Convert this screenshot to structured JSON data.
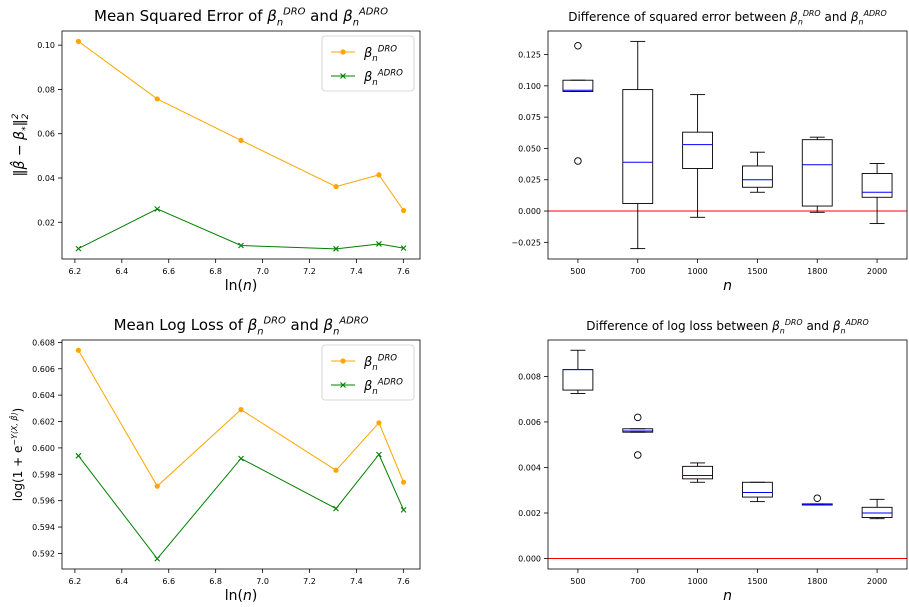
{
  "colors": {
    "dro": "#FFA500",
    "adro": "#008000",
    "box": "#000000",
    "median": "#0000FF",
    "zero_line": "#FF0000"
  },
  "chart_data": [
    {
      "id": "mse-line",
      "type": "line",
      "title_parts": [
        {
          "t": "Mean Squared Error of "
        },
        {
          "t": "β"
        },
        {
          "t": "n",
          "sub": 1
        },
        {
          "t": "DRO",
          "sup": 1
        },
        {
          "t": " and "
        },
        {
          "t": "β"
        },
        {
          "t": "n",
          "sub": 1
        },
        {
          "t": "ADRO",
          "sup": 1
        }
      ],
      "xlabel_parts": [
        {
          "t": "ln("
        },
        {
          "t": "n",
          "it": 1
        },
        {
          "t": ")"
        }
      ],
      "ylabel_parts": [
        {
          "t": "‖"
        },
        {
          "t": "β̂",
          "it": 1
        },
        {
          "t": " − "
        },
        {
          "t": "β",
          "it": 1
        },
        {
          "t": "*",
          "sub": 1
        },
        {
          "t": "‖"
        },
        {
          "t": "2",
          "sup": 1
        },
        {
          "t": "2",
          "sub": 1,
          "shift": 1
        }
      ],
      "x": [
        6.215,
        6.551,
        6.908,
        7.313,
        7.496,
        7.601
      ],
      "series": [
        {
          "name_parts": [
            {
              "t": "β"
            },
            {
              "t": "n",
              "sub": 1
            },
            {
              "t": "DRO",
              "sup": 1
            }
          ],
          "color_key": "dro",
          "marker": "circle",
          "values": [
            0.1017,
            0.0757,
            0.057,
            0.0361,
            0.0414,
            0.0253
          ]
        },
        {
          "name_parts": [
            {
              "t": "β"
            },
            {
              "t": "n",
              "sub": 1
            },
            {
              "t": "ADRO",
              "sup": 1
            }
          ],
          "color_key": "adro",
          "marker": "x",
          "values": [
            0.0081,
            0.026,
            0.0095,
            0.008,
            0.0102,
            0.0083
          ]
        }
      ],
      "xlim": [
        6.145,
        7.671
      ],
      "ylim": [
        0.0034,
        0.1064
      ],
      "xticks": [
        6.2,
        6.4,
        6.6,
        6.8,
        7.0,
        7.2,
        7.4,
        7.6
      ],
      "xtick_labels": [
        "6.2",
        "6.4",
        "6.6",
        "6.8",
        "7.0",
        "7.2",
        "7.4",
        "7.6"
      ],
      "yticks": [
        0.02,
        0.04,
        0.06,
        0.08,
        0.1
      ],
      "ytick_labels": [
        "0.02",
        "0.04",
        "0.06",
        "0.08",
        "0.10"
      ],
      "legend": "top-right",
      "grid": false
    },
    {
      "id": "mse-box",
      "type": "box",
      "title_parts": [
        {
          "t": "Difference of squared error between "
        },
        {
          "t": "β"
        },
        {
          "t": "n",
          "sub": 1
        },
        {
          "t": "DRO",
          "sup": 1
        },
        {
          "t": " and "
        },
        {
          "t": "β"
        },
        {
          "t": "n",
          "sub": 1
        },
        {
          "t": "ADRO",
          "sup": 1
        }
      ],
      "xlabel_parts": [
        {
          "t": "n",
          "it": 1
        }
      ],
      "categories": [
        "500",
        "700",
        "1000",
        "1500",
        "1800",
        "2000"
      ],
      "boxes": [
        {
          "whislo": 0.0955,
          "q1": 0.0955,
          "med": 0.0965,
          "q3": 0.1045,
          "whishi": 0.1045,
          "fliers": [
            0.04,
            0.132
          ]
        },
        {
          "whislo": -0.03,
          "q1": 0.006,
          "med": 0.039,
          "q3": 0.097,
          "whishi": 0.1355,
          "fliers": []
        },
        {
          "whislo": -0.005,
          "q1": 0.034,
          "med": 0.053,
          "q3": 0.063,
          "whishi": 0.093,
          "fliers": []
        },
        {
          "whislo": 0.015,
          "q1": 0.019,
          "med": 0.025,
          "q3": 0.036,
          "whishi": 0.047,
          "fliers": []
        },
        {
          "whislo": -0.001,
          "q1": 0.004,
          "med": 0.037,
          "q3": 0.057,
          "whishi": 0.059,
          "fliers": []
        },
        {
          "whislo": -0.01,
          "q1": 0.011,
          "med": 0.015,
          "q3": 0.03,
          "whishi": 0.038,
          "fliers": []
        }
      ],
      "ylim": [
        -0.0383,
        0.1438
      ],
      "yticks": [
        -0.025,
        0.0,
        0.025,
        0.05,
        0.075,
        0.1,
        0.125
      ],
      "ytick_labels": [
        "−0.025",
        "0.000",
        "0.025",
        "0.050",
        "0.075",
        "0.100",
        "0.125"
      ],
      "hline": 0.0,
      "grid": false
    },
    {
      "id": "logloss-line",
      "type": "line",
      "title_parts": [
        {
          "t": "Mean Log Loss of "
        },
        {
          "t": "β"
        },
        {
          "t": "n",
          "sub": 1
        },
        {
          "t": "DRO",
          "sup": 1
        },
        {
          "t": " and "
        },
        {
          "t": "β"
        },
        {
          "t": "n",
          "sub": 1
        },
        {
          "t": "ADRO",
          "sup": 1
        }
      ],
      "xlabel_parts": [
        {
          "t": "ln("
        },
        {
          "t": "n",
          "it": 1
        },
        {
          "t": ")"
        }
      ],
      "ylabel_parts": [
        {
          "t": "log(1 + "
        },
        {
          "t": "e"
        },
        {
          "t": "−Y⟨X, β̂⟩",
          "sup": 1
        },
        {
          "t": ")"
        }
      ],
      "x": [
        6.215,
        6.551,
        6.908,
        7.313,
        7.496,
        7.601
      ],
      "series": [
        {
          "name_parts": [
            {
              "t": "β"
            },
            {
              "t": "n",
              "sub": 1
            },
            {
              "t": "DRO",
              "sup": 1
            }
          ],
          "color_key": "dro",
          "marker": "circle",
          "values": [
            0.6074,
            0.5971,
            0.6029,
            0.5983,
            0.6019,
            0.5974
          ]
        },
        {
          "name_parts": [
            {
              "t": "β"
            },
            {
              "t": "n",
              "sub": 1
            },
            {
              "t": "ADRO",
              "sup": 1
            }
          ],
          "color_key": "adro",
          "marker": "x",
          "values": [
            0.5994,
            0.5916,
            0.5992,
            0.5954,
            0.5995,
            0.5953
          ]
        }
      ],
      "xlim": [
        6.145,
        7.671
      ],
      "ylim": [
        0.59082,
        0.60818
      ],
      "xticks": [
        6.2,
        6.4,
        6.6,
        6.8,
        7.0,
        7.2,
        7.4,
        7.6
      ],
      "xtick_labels": [
        "6.2",
        "6.4",
        "6.6",
        "6.8",
        "7.0",
        "7.2",
        "7.4",
        "7.6"
      ],
      "yticks": [
        0.592,
        0.594,
        0.596,
        0.598,
        0.6,
        0.602,
        0.604,
        0.606,
        0.608
      ],
      "ytick_labels": [
        "0.592",
        "0.594",
        "0.596",
        "0.598",
        "0.600",
        "0.602",
        "0.604",
        "0.606",
        "0.608"
      ],
      "legend": "top-right",
      "grid": false
    },
    {
      "id": "logloss-box",
      "type": "box",
      "title_parts": [
        {
          "t": "Difference of log loss between "
        },
        {
          "t": "β"
        },
        {
          "t": "n",
          "sub": 1
        },
        {
          "t": "DRO",
          "sup": 1
        },
        {
          "t": " and "
        },
        {
          "t": "β"
        },
        {
          "t": "n",
          "sub": 1
        },
        {
          "t": "ADRO",
          "sup": 1
        }
      ],
      "xlabel_parts": [
        {
          "t": "n",
          "it": 1
        }
      ],
      "categories": [
        "500",
        "700",
        "1000",
        "1500",
        "1800",
        "2000"
      ],
      "boxes": [
        {
          "whislo": 0.00725,
          "q1": 0.0074,
          "med": 0.0083,
          "q3": 0.0083,
          "whishi": 0.00915,
          "fliers": []
        },
        {
          "whislo": 0.00555,
          "q1": 0.00555,
          "med": 0.0056,
          "q3": 0.0057,
          "whishi": 0.0057,
          "fliers": [
            0.00455,
            0.0062
          ]
        },
        {
          "whislo": 0.00335,
          "q1": 0.0035,
          "med": 0.00365,
          "q3": 0.00405,
          "whishi": 0.0042,
          "fliers": []
        },
        {
          "whislo": 0.0025,
          "q1": 0.0027,
          "med": 0.0029,
          "q3": 0.00335,
          "whishi": 0.00335,
          "fliers": []
        },
        {
          "whislo": 0.00235,
          "q1": 0.00235,
          "med": 0.00237,
          "q3": 0.0024,
          "whishi": 0.0024,
          "fliers": [
            0.00265
          ]
        },
        {
          "whislo": 0.00175,
          "q1": 0.0018,
          "med": 0.002,
          "q3": 0.00225,
          "whishi": 0.0026,
          "fliers": []
        }
      ],
      "ylim": [
        -0.00046,
        0.0096
      ],
      "yticks": [
        0.0,
        0.002,
        0.004,
        0.006,
        0.008
      ],
      "ytick_labels": [
        "0.000",
        "0.002",
        "0.004",
        "0.006",
        "0.008"
      ],
      "hline": 0.0,
      "grid": false
    }
  ]
}
